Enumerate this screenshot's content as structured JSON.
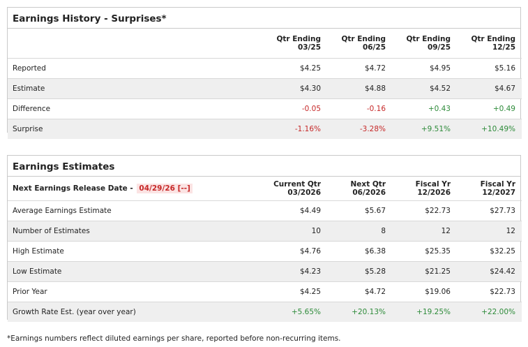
{
  "history": {
    "title": "Earnings History - Surprises*",
    "columns": [
      {
        "line1": "Qtr Ending",
        "line2": "03/25"
      },
      {
        "line1": "Qtr Ending",
        "line2": "06/25"
      },
      {
        "line1": "Qtr Ending",
        "line2": "09/25"
      },
      {
        "line1": "Qtr Ending",
        "line2": "12/25"
      }
    ],
    "rows": [
      {
        "label": "Reported",
        "values": [
          "$4.25",
          "$4.72",
          "$4.95",
          "$5.16"
        ]
      },
      {
        "label": "Estimate",
        "values": [
          "$4.30",
          "$4.88",
          "$4.52",
          "$4.67"
        ]
      },
      {
        "label": "Difference",
        "values": [
          "-0.05",
          "-0.16",
          "+0.43",
          "+0.49"
        ]
      },
      {
        "label": "Surprise",
        "values": [
          "-1.16%",
          "-3.28%",
          "+9.51%",
          "+10.49%"
        ]
      }
    ]
  },
  "estimates": {
    "title": "Earnings Estimates",
    "release_label": "Next Earnings Release Date -",
    "release_date": "04/29/26 [--]",
    "columns": [
      {
        "line1": "Current Qtr",
        "line2": "03/2026"
      },
      {
        "line1": "Next Qtr",
        "line2": "06/2026"
      },
      {
        "line1": "Fiscal Yr",
        "line2": "12/2026"
      },
      {
        "line1": "Fiscal Yr",
        "line2": "12/2027"
      }
    ],
    "rows": [
      {
        "label": "Average Earnings Estimate",
        "values": [
          "$4.49",
          "$5.67",
          "$22.73",
          "$27.73"
        ]
      },
      {
        "label": "Number of Estimates",
        "values": [
          "10",
          "8",
          "12",
          "12"
        ]
      },
      {
        "label": "High Estimate",
        "values": [
          "$4.76",
          "$6.38",
          "$25.35",
          "$32.25"
        ]
      },
      {
        "label": "Low Estimate",
        "values": [
          "$4.23",
          "$5.28",
          "$21.25",
          "$24.42"
        ]
      },
      {
        "label": "Prior Year",
        "values": [
          "$4.25",
          "$4.72",
          "$19.06",
          "$22.73"
        ]
      },
      {
        "label": "Growth Rate Est. (year over year)",
        "values": [
          "+5.65%",
          "+20.13%",
          "+19.25%",
          "+22.00%"
        ]
      }
    ]
  },
  "colors": {
    "negative": "#c62828",
    "positive": "#2e8b3a",
    "row_shade": "#efefef",
    "border": "#c9c9c9"
  },
  "footnote": "*Earnings numbers reflect diluted earnings per share, reported before non-recurring items."
}
